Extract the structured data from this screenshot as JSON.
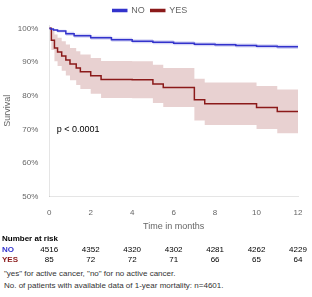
{
  "chart_data": {
    "type": "line",
    "line_style": "step",
    "xlabel": "Time in months",
    "ylabel": "Survival",
    "xlim": [
      0,
      12
    ],
    "xticks": [
      0,
      2,
      4,
      6,
      8,
      10,
      12
    ],
    "ylim": [
      0.5,
      1.01
    ],
    "yticks": [
      {
        "value": 0.5,
        "label": "50%"
      },
      {
        "value": 0.6,
        "label": "60%"
      },
      {
        "value": 0.7,
        "label": "70%"
      },
      {
        "value": 0.8,
        "label": "80%"
      },
      {
        "value": 0.9,
        "label": "90%"
      },
      {
        "value": 1.0,
        "label": "100%"
      }
    ],
    "grid": false,
    "legend": "top",
    "series": [
      {
        "name": "NO",
        "color": "#3333cc",
        "x": [
          0,
          0.05,
          0.2,
          0.4,
          0.8,
          1.2,
          2.0,
          3.0,
          4.0,
          5.0,
          6.0,
          7.0,
          8.0,
          9.0,
          10.0,
          11.0,
          12.0
        ],
        "values": [
          1.0,
          0.998,
          0.995,
          0.992,
          0.984,
          0.978,
          0.972,
          0.966,
          0.962,
          0.959,
          0.956,
          0.953,
          0.951,
          0.949,
          0.947,
          0.945,
          0.943
        ],
        "ci_upper": [
          1.0,
          0.9995,
          0.998,
          0.996,
          0.99,
          0.984,
          0.978,
          0.972,
          0.968,
          0.965,
          0.962,
          0.959,
          0.957,
          0.955,
          0.953,
          0.951,
          0.949
        ],
        "ci_lower": [
          1.0,
          0.996,
          0.992,
          0.988,
          0.978,
          0.972,
          0.966,
          0.96,
          0.956,
          0.953,
          0.95,
          0.947,
          0.945,
          0.943,
          0.941,
          0.939,
          0.937
        ]
      },
      {
        "name": "YES",
        "color": "#8B1A1A",
        "x": [
          0,
          0.1,
          0.25,
          0.4,
          0.6,
          0.8,
          1.0,
          1.3,
          1.5,
          2.0,
          2.5,
          3.0,
          3.5,
          4.0,
          4.5,
          5.0,
          5.5,
          6.0,
          6.5,
          7.0,
          7.5,
          8.0,
          9.0,
          10.0,
          10.5,
          11.0,
          12.0
        ],
        "values": [
          1.0,
          0.965,
          0.942,
          0.93,
          0.918,
          0.906,
          0.894,
          0.882,
          0.871,
          0.859,
          0.848,
          0.848,
          0.848,
          0.847,
          0.847,
          0.835,
          0.824,
          0.824,
          0.824,
          0.788,
          0.776,
          0.776,
          0.776,
          0.765,
          0.765,
          0.753,
          0.753
        ],
        "ci_upper": [
          1.0,
          0.994,
          0.982,
          0.972,
          0.962,
          0.952,
          0.942,
          0.932,
          0.922,
          0.912,
          0.903,
          0.903,
          0.903,
          0.902,
          0.902,
          0.892,
          0.882,
          0.882,
          0.882,
          0.85,
          0.839,
          0.839,
          0.839,
          0.829,
          0.829,
          0.818,
          0.818
        ],
        "ci_lower": [
          1.0,
          0.936,
          0.902,
          0.888,
          0.874,
          0.86,
          0.846,
          0.832,
          0.82,
          0.806,
          0.793,
          0.793,
          0.793,
          0.792,
          0.792,
          0.778,
          0.766,
          0.766,
          0.766,
          0.726,
          0.713,
          0.713,
          0.713,
          0.701,
          0.701,
          0.688,
          0.688
        ]
      }
    ],
    "annotations": [
      "p < 0.0001"
    ],
    "risk_table": {
      "title": "Number at risk",
      "times": [
        0,
        2,
        4,
        6,
        8,
        10,
        12
      ],
      "rows": [
        {
          "name": "NO",
          "values": [
            4516,
            4352,
            4320,
            4302,
            4281,
            4262,
            4229
          ]
        },
        {
          "name": "YES",
          "values": [
            85,
            72,
            72,
            71,
            66,
            65,
            64
          ]
        }
      ]
    },
    "captions": [
      "\"yes\" for active cancer, \"no\" for no active cancer.",
      "No. of patients with available data of 1-year mortality: n=4601."
    ]
  }
}
